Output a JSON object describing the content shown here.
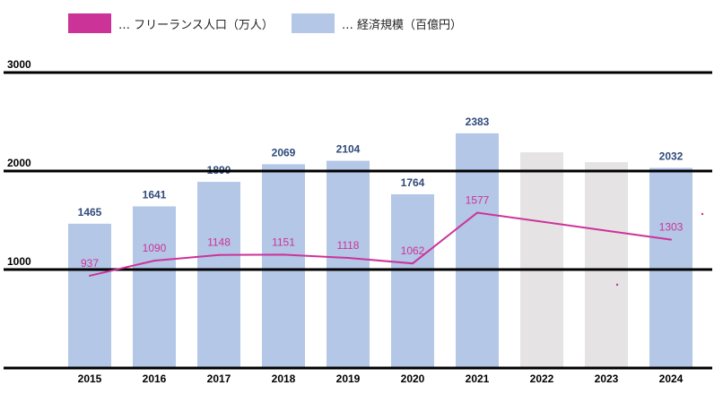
{
  "chart_data": {
    "type": "bar+line",
    "categories": [
      "2015",
      "2016",
      "2017",
      "2018",
      "2019",
      "2020",
      "2021",
      "2022",
      "2023",
      "2024"
    ],
    "ylim": [
      0,
      3000
    ],
    "yticks": [
      1000,
      2000,
      3000
    ],
    "ytick_labels": [
      "1000",
      "2000",
      "3000"
    ],
    "grid": true,
    "legend_position": "top-left",
    "series": [
      {
        "name": "… フリーランス人口（万人）",
        "type": "line",
        "color": "#cc3399",
        "values": [
          937,
          1090,
          1148,
          1151,
          1118,
          1062,
          1577,
          null,
          null,
          1303
        ],
        "labels": [
          "937",
          "1090",
          "1148",
          "1151",
          "1118",
          "1062",
          "1577",
          "",
          "",
          "1303"
        ]
      },
      {
        "name": "… 経済規模（百億円）",
        "type": "bar",
        "color": "#b4c7e7",
        "label_color": "#2f4a7a",
        "values": [
          1465,
          1641,
          1890,
          2069,
          2104,
          1764,
          2383,
          2190,
          2090,
          2032
        ],
        "labels": [
          "1465",
          "1641",
          "1890",
          "2069",
          "2104",
          "1764",
          "2383",
          "",
          "",
          "2032"
        ],
        "estimate_color": "#e5e3e3",
        "estimate_flags": [
          false,
          false,
          false,
          false,
          false,
          false,
          false,
          true,
          true,
          false
        ]
      }
    ]
  }
}
